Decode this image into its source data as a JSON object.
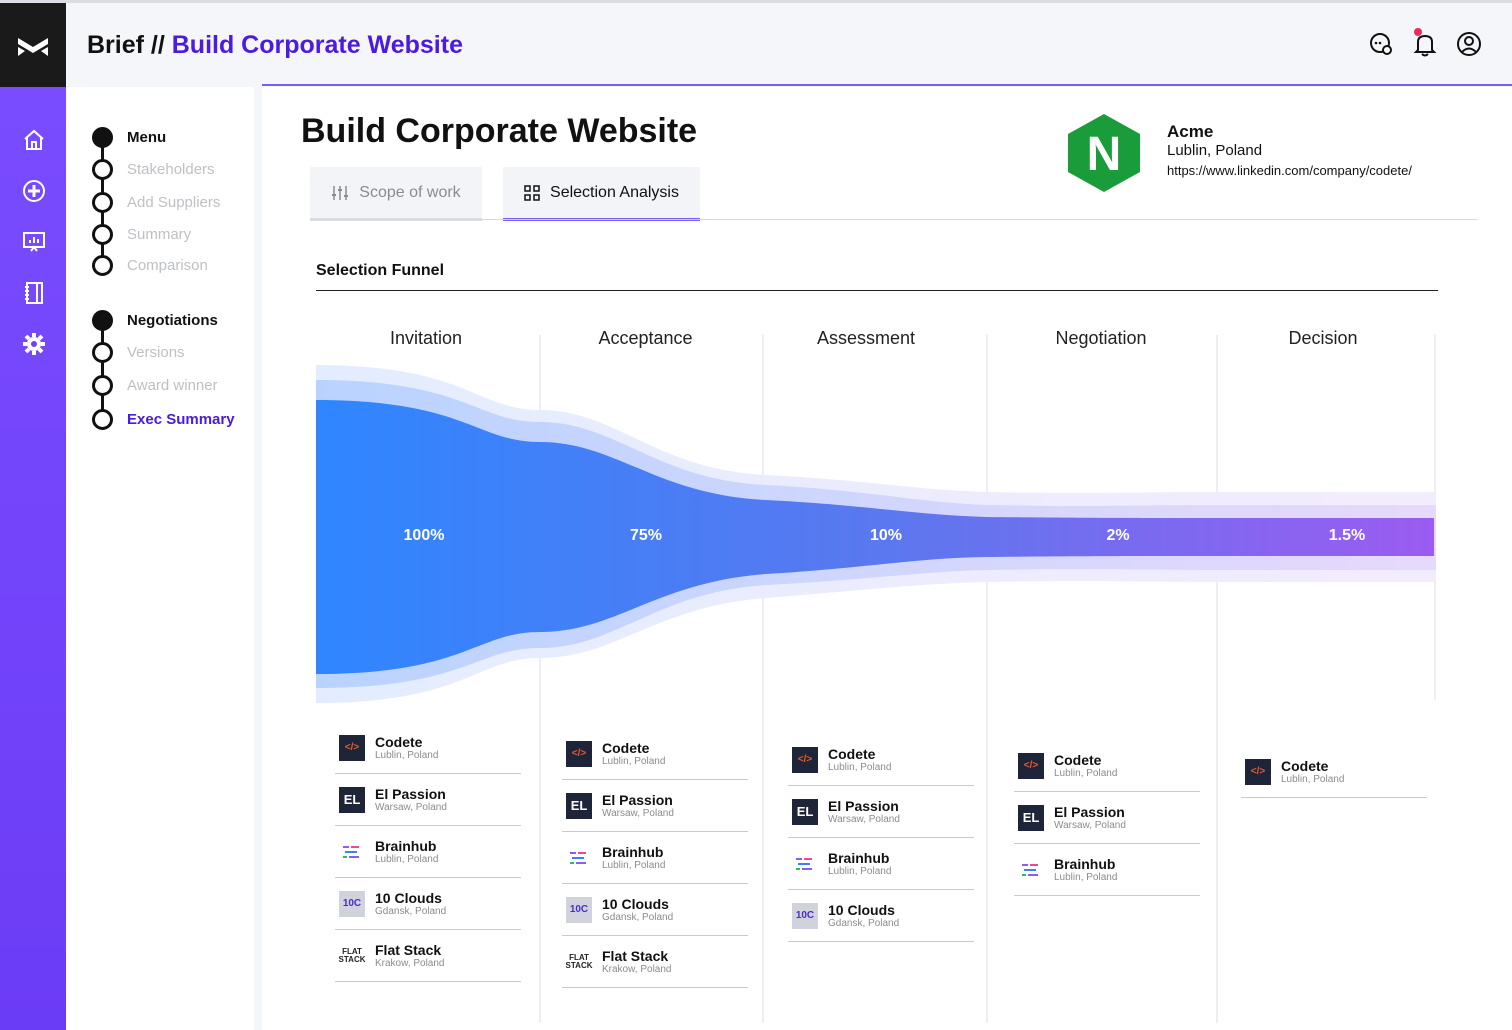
{
  "header": {
    "brief_label": "Brief //",
    "project_title": "Build Corporate Website",
    "icons": [
      "chat-icon",
      "bell-icon",
      "user-icon"
    ]
  },
  "rail": {
    "icons": [
      "home-icon",
      "add-circle-icon",
      "presentation-icon",
      "notebook-icon",
      "settings-icon"
    ]
  },
  "steps": {
    "menu": {
      "title": "Menu",
      "items": [
        "Stakeholders",
        "Add Suppliers",
        "Summary",
        "Comparison"
      ]
    },
    "negotiations": {
      "title": "Negotiations",
      "items": [
        "Versions",
        "Award winner",
        "Exec Summary"
      ]
    }
  },
  "main": {
    "title": "Build Corporate Website",
    "tabs": [
      {
        "label": "Scope of work",
        "icon": "sliders-icon",
        "active": false
      },
      {
        "label": "Selection Analysis",
        "icon": "grid-icon",
        "active": true
      }
    ]
  },
  "company": {
    "name": "Acme",
    "location": "Lublin, Poland",
    "url": "https://www.linkedin.com/company/codete/",
    "logo_letter": "N",
    "logo_color": "#1b9c3b"
  },
  "funnel": {
    "title": "Selection Funnel",
    "stages": [
      {
        "name": "Invitation",
        "percent": "100%"
      },
      {
        "name": "Acceptance",
        "percent": "75%"
      },
      {
        "name": "Assessment",
        "percent": "10%"
      },
      {
        "name": "Negotiation",
        "percent": "2%"
      },
      {
        "name": "Decision",
        "percent": "1.5%"
      }
    ],
    "colors": {
      "start": "#2f86ff",
      "end": "#9b5cf0"
    }
  },
  "vendors": {
    "invitation": [
      {
        "name": "Codete",
        "city": "Lublin, Poland",
        "logo": "codete"
      },
      {
        "name": "El Passion",
        "city": "Warsaw, Poland",
        "logo": "elp"
      },
      {
        "name": "Brainhub",
        "city": "Lublin, Poland",
        "logo": "brain"
      },
      {
        "name": "10 Clouds",
        "city": "Gdansk, Poland",
        "logo": "clouds"
      },
      {
        "name": "Flat Stack",
        "city": "Krakow, Poland",
        "logo": "flat"
      }
    ],
    "acceptance": [
      {
        "name": "Codete",
        "city": "Lublin, Poland",
        "logo": "codete"
      },
      {
        "name": "El Passion",
        "city": "Warsaw, Poland",
        "logo": "elp"
      },
      {
        "name": "Brainhub",
        "city": "Lublin, Poland",
        "logo": "brain"
      },
      {
        "name": "10 Clouds",
        "city": "Gdansk, Poland",
        "logo": "clouds"
      },
      {
        "name": "Flat Stack",
        "city": "Krakow, Poland",
        "logo": "flat"
      }
    ],
    "assessment": [
      {
        "name": "Codete",
        "city": "Lublin, Poland",
        "logo": "codete"
      },
      {
        "name": "El Passion",
        "city": "Warsaw, Poland",
        "logo": "elp"
      },
      {
        "name": "Brainhub",
        "city": "Lublin, Poland",
        "logo": "brain"
      },
      {
        "name": "10 Clouds",
        "city": "Gdansk, Poland",
        "logo": "clouds"
      }
    ],
    "negotiation": [
      {
        "name": "Codete",
        "city": "Lublin, Poland",
        "logo": "codete"
      },
      {
        "name": "El Passion",
        "city": "Warsaw, Poland",
        "logo": "elp"
      },
      {
        "name": "Brainhub",
        "city": "Lublin, Poland",
        "logo": "brain"
      }
    ],
    "decision": [
      {
        "name": "Codete",
        "city": "Lublin, Poland",
        "logo": "codete"
      }
    ]
  },
  "logo_text": {
    "codete": "</>",
    "elp": "EL",
    "clouds": "10C",
    "flat": "FLAT STACK"
  }
}
